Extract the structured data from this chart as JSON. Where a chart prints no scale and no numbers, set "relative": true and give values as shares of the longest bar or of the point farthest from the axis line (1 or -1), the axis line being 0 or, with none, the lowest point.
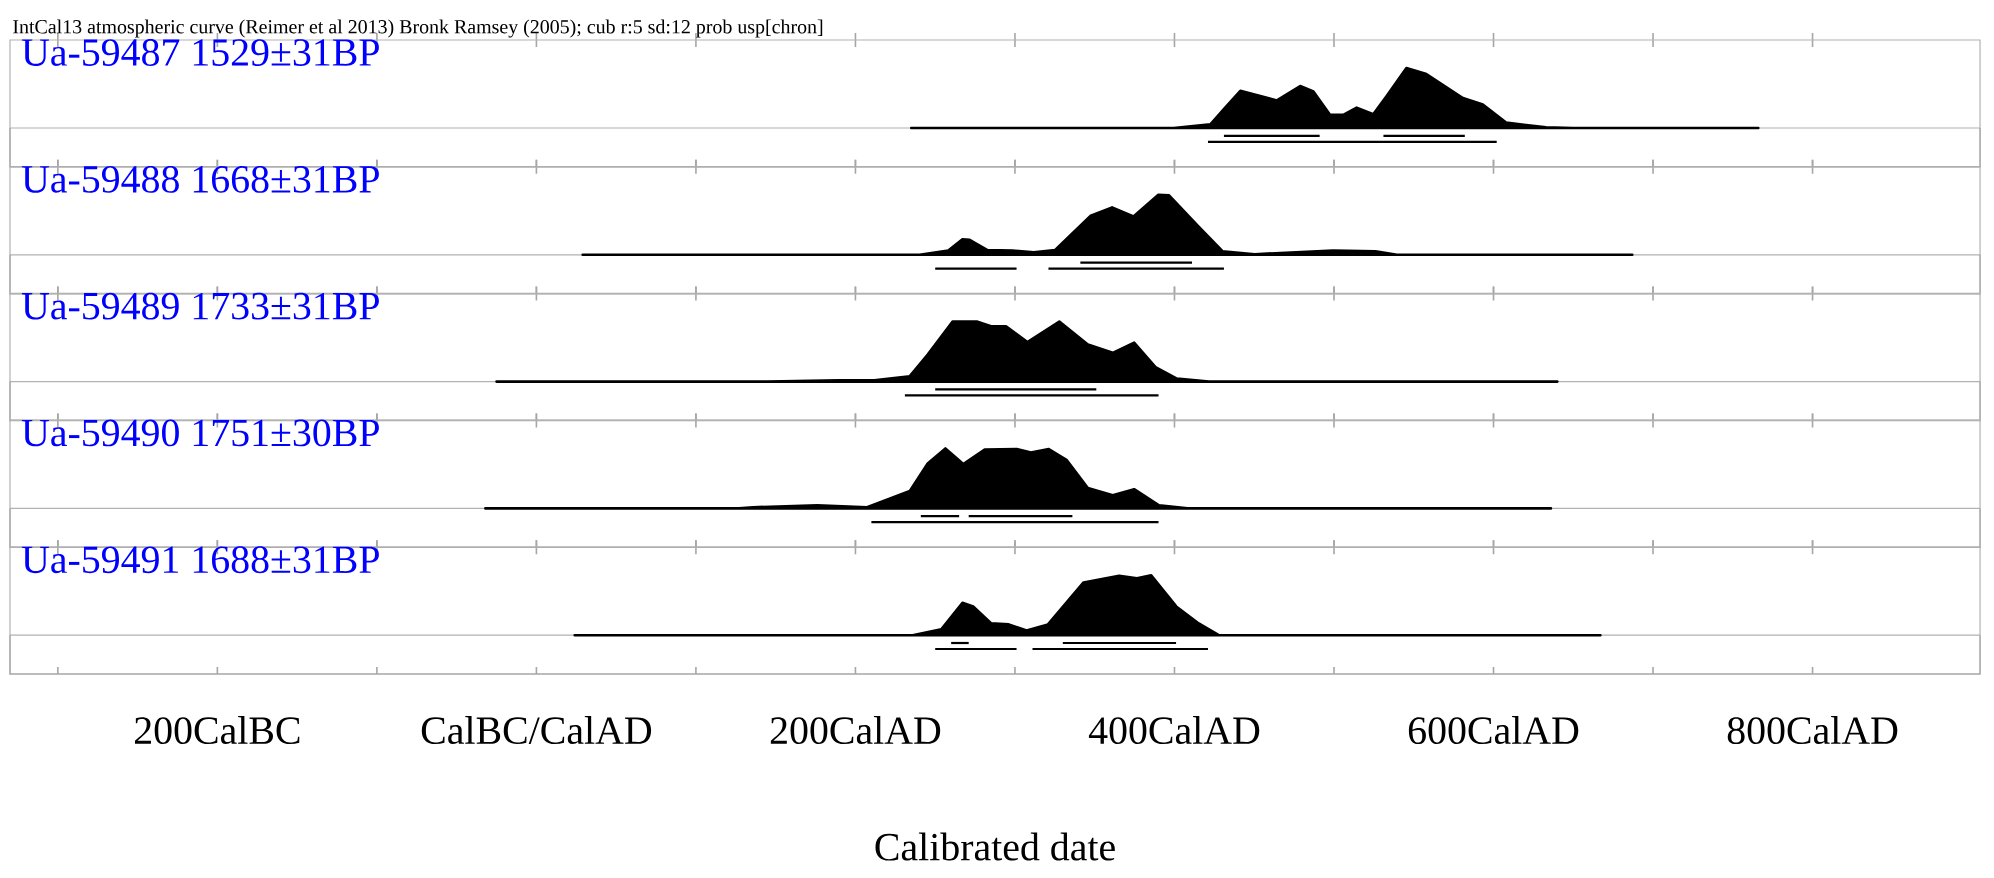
{
  "chart_data": [
    {
      "type": "area",
      "relative": true,
      "title": "Ua-59487 1529±31BP",
      "annotations": [
        "IntCal13 atmospheric curve (Reimer et al 2013) Bronk Ramsey (2005); cub r:5 sd:12 prob usp[chron]"
      ],
      "xlim": [
        -330,
        905
      ],
      "xticks": [
        {
          "value": -300,
          "label": null
        },
        {
          "value": -200,
          "label": null
        },
        {
          "value": -100,
          "label": null
        },
        {
          "value": 0,
          "label": null
        },
        {
          "value": 100,
          "label": null
        },
        {
          "value": 200,
          "label": null
        },
        {
          "value": 300,
          "label": null
        },
        {
          "value": 400,
          "label": null
        },
        {
          "value": 500,
          "label": null
        },
        {
          "value": 600,
          "label": null
        },
        {
          "value": 700,
          "label": null
        },
        {
          "value": 800,
          "label": null
        }
      ],
      "tick_labels": false,
      "series": [
        {
          "type": "area",
          "color": "#000000",
          "x": [
            235,
            399.6,
            422.5,
            430.8,
            441.3,
            464.2,
            478.8,
            487.1,
            497.5,
            505.8,
            514.2,
            524.6,
            532.9,
            545.4,
            557.9,
            580.8,
            593.3,
            607.9,
            632.9,
            649.6,
            766
          ],
          "values": [
            0,
            0,
            0.06,
            0.31,
            0.62,
            0.46,
            0.7,
            0.61,
            0.22,
            0.22,
            0.34,
            0.23,
            0.53,
            1,
            0.9,
            0.5,
            0.39,
            0.09,
            0.01,
            0,
            0
          ]
        },
        {
          "type": "line",
          "color": "#000000",
          "x": [
            431,
            491
          ],
          "values": [
            -0.13,
            -0.13
          ]
        },
        {
          "type": "line",
          "color": "#000000",
          "x": [
            531,
            582
          ],
          "values": [
            -0.13,
            -0.13
          ]
        },
        {
          "type": "line",
          "color": "#000000",
          "x": [
            421,
            602
          ],
          "values": [
            -0.23,
            -0.23
          ]
        }
      ]
    },
    {
      "type": "area",
      "relative": true,
      "title": "Ua-59488 1668±31BP",
      "xlim": [
        -330,
        905
      ],
      "xticks": [
        {
          "value": -300,
          "label": null
        },
        {
          "value": -200,
          "label": null
        },
        {
          "value": -100,
          "label": null
        },
        {
          "value": 0,
          "label": null
        },
        {
          "value": 100,
          "label": null
        },
        {
          "value": 200,
          "label": null
        },
        {
          "value": 300,
          "label": null
        },
        {
          "value": 400,
          "label": null
        },
        {
          "value": 500,
          "label": null
        },
        {
          "value": 600,
          "label": null
        },
        {
          "value": 700,
          "label": null
        },
        {
          "value": 800,
          "label": null
        }
      ],
      "tick_labels": false,
      "series": [
        {
          "type": "area",
          "color": "#000000",
          "x": [
            29,
            240.3,
            258.2,
            267.1,
            271.6,
            282.8,
            298.4,
            311.8,
            325.2,
            347.5,
            360.9,
            374.3,
            389.9,
            396.6,
            414.4,
            430.1,
            450.2,
            499.3,
            526,
            539.4,
            687
          ],
          "values": [
            0,
            0,
            0.07,
            0.26,
            0.25,
            0.08,
            0.07,
            0.04,
            0.08,
            0.65,
            0.79,
            0.64,
            1,
            0.99,
            0.49,
            0.06,
            0.01,
            0.07,
            0.06,
            0,
            0
          ]
        },
        {
          "type": "line",
          "color": "#000000",
          "x": [
            341,
            411
          ],
          "values": [
            -0.13,
            -0.13
          ]
        },
        {
          "type": "line",
          "color": "#000000",
          "x": [
            250,
            301
          ],
          "values": [
            -0.23,
            -0.23
          ]
        },
        {
          "type": "line",
          "color": "#000000",
          "x": [
            321,
            431
          ],
          "values": [
            -0.23,
            -0.23
          ]
        }
      ]
    },
    {
      "type": "area",
      "relative": true,
      "title": "Ua-59489 1733±31BP",
      "xlim": [
        -330,
        905
      ],
      "xticks": [
        {
          "value": -300,
          "label": null
        },
        {
          "value": -200,
          "label": null
        },
        {
          "value": -100,
          "label": null
        },
        {
          "value": 0,
          "label": null
        },
        {
          "value": 100,
          "label": null
        },
        {
          "value": 200,
          "label": null
        },
        {
          "value": 300,
          "label": null
        },
        {
          "value": 400,
          "label": null
        },
        {
          "value": 500,
          "label": null
        },
        {
          "value": 600,
          "label": null
        },
        {
          "value": 700,
          "label": null
        },
        {
          "value": 800,
          "label": null
        }
      ],
      "tick_labels": false,
      "series": [
        {
          "type": "area",
          "color": "#000000",
          "x": [
            -25,
            144.8,
            189.5,
            211.8,
            234.1,
            245.3,
            260.9,
            276.5,
            285.5,
            294.4,
            307.8,
            327.8,
            345.7,
            361.3,
            374.7,
            388.1,
            401.5,
            421.6,
            640
          ],
          "values": [
            0,
            0,
            0.02,
            0.02,
            0.09,
            0.45,
            1,
            1,
            0.92,
            0.92,
            0.66,
            1,
            0.62,
            0.48,
            0.65,
            0.24,
            0.05,
            0,
            0
          ]
        },
        {
          "type": "line",
          "color": "#000000",
          "x": [
            250,
            351
          ],
          "values": [
            -0.13,
            -0.13
          ]
        },
        {
          "type": "line",
          "color": "#000000",
          "x": [
            231,
            390
          ],
          "values": [
            -0.23,
            -0.23
          ]
        }
      ]
    },
    {
      "type": "area",
      "relative": true,
      "title": "Ua-59490 1751±30BP",
      "xlim": [
        -330,
        905
      ],
      "xticks": [
        {
          "value": -300,
          "label": null
        },
        {
          "value": -200,
          "label": null
        },
        {
          "value": -100,
          "label": null
        },
        {
          "value": 0,
          "label": null
        },
        {
          "value": 100,
          "label": null
        },
        {
          "value": 200,
          "label": null
        },
        {
          "value": 300,
          "label": null
        },
        {
          "value": 400,
          "label": null
        },
        {
          "value": 500,
          "label": null
        },
        {
          "value": 600,
          "label": null
        },
        {
          "value": 700,
          "label": null
        },
        {
          "value": 800,
          "label": null
        }
      ],
      "tick_labels": false,
      "series": [
        {
          "type": "area",
          "color": "#000000",
          "x": [
            -32,
            127,
            135.9,
            176.1,
            207.3,
            234.1,
            245.3,
            256.4,
            267.6,
            281,
            301.1,
            310,
            321.2,
            332.3,
            345.7,
            361.3,
            374.7,
            390.3,
            408.2,
            636
          ],
          "values": [
            0,
            0,
            0.02,
            0.05,
            0.02,
            0.29,
            0.75,
            1,
            0.74,
            0.98,
            0.99,
            0.93,
            0.99,
            0.81,
            0.34,
            0.22,
            0.32,
            0.05,
            0,
            0
          ]
        },
        {
          "type": "line",
          "color": "#000000",
          "x": [
            241,
            265
          ],
          "values": [
            -0.13,
            -0.13
          ]
        },
        {
          "type": "line",
          "color": "#000000",
          "x": [
            271,
            336
          ],
          "values": [
            -0.13,
            -0.13
          ]
        },
        {
          "type": "line",
          "color": "#000000",
          "x": [
            210,
            390
          ],
          "values": [
            -0.23,
            -0.23
          ]
        }
      ]
    },
    {
      "type": "area",
      "relative": true,
      "title": "Ua-59491 1688±31BP",
      "xlabel": "Calibrated date",
      "xlim": [
        -330,
        905
      ],
      "xticks": [
        {
          "value": -300,
          "label": null
        },
        {
          "value": -200,
          "label": "200CalBC"
        },
        {
          "value": -100,
          "label": null
        },
        {
          "value": 0,
          "label": "CalBC/CalAD"
        },
        {
          "value": 100,
          "label": null
        },
        {
          "value": 200,
          "label": "200CalAD"
        },
        {
          "value": 300,
          "label": null
        },
        {
          "value": 400,
          "label": "400CalAD"
        },
        {
          "value": 500,
          "label": null
        },
        {
          "value": 600,
          "label": "600CalAD"
        },
        {
          "value": 700,
          "label": null
        },
        {
          "value": 800,
          "label": "800CalAD"
        }
      ],
      "tick_labels": "x",
      "series": [
        {
          "type": "area",
          "color": "#000000",
          "x": [
            24,
            235.9,
            253.8,
            267.1,
            273.8,
            285,
            296.1,
            307.3,
            320.7,
            343,
            365.3,
            376.5,
            385.4,
            401.1,
            414.4,
            427.8,
            667
          ],
          "values": [
            0,
            0,
            0.1,
            0.54,
            0.48,
            0.2,
            0.18,
            0.08,
            0.18,
            0.88,
            0.99,
            0.95,
            1,
            0.48,
            0.21,
            0,
            0
          ]
        },
        {
          "type": "line",
          "color": "#000000",
          "x": [
            260,
            271
          ],
          "values": [
            -0.13,
            -0.13
          ]
        },
        {
          "type": "line",
          "color": "#000000",
          "x": [
            330,
            401
          ],
          "values": [
            -0.13,
            -0.13
          ]
        },
        {
          "type": "line",
          "color": "#000000",
          "x": [
            250,
            301
          ],
          "values": [
            -0.23,
            -0.23
          ]
        },
        {
          "type": "line",
          "color": "#000000",
          "x": [
            311,
            421
          ],
          "values": [
            -0.23,
            -0.23
          ]
        }
      ]
    }
  ]
}
